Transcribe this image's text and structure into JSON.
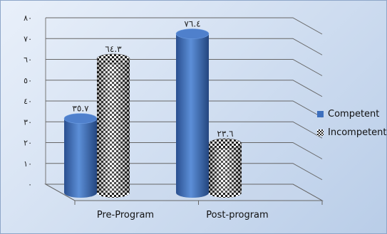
{
  "chart_data": {
    "type": "bar",
    "categories": [
      "Pre-Program",
      "Post-program"
    ],
    "series": [
      {
        "name": "Competent",
        "values": [
          35.7,
          76.4
        ],
        "labels": [
          "٣٥.٧",
          "٧٦.٤"
        ],
        "color": "#3d6fbd",
        "pattern": "solid"
      },
      {
        "name": "Incompetent",
        "values": [
          64.3,
          23.6
        ],
        "labels": [
          "٦٤.٣",
          "٢٣.٦"
        ],
        "color": "#222222",
        "pattern": "checkerboard"
      }
    ],
    "y_ticks": [
      "٠",
      "١٠",
      "٢٠",
      "٣٠",
      "٤٠",
      "٥٠",
      "٦٠",
      "٧٠",
      "٨٠"
    ],
    "ylim": [
      0,
      80
    ],
    "grid": true,
    "three_d": true,
    "legend_position": "right"
  }
}
